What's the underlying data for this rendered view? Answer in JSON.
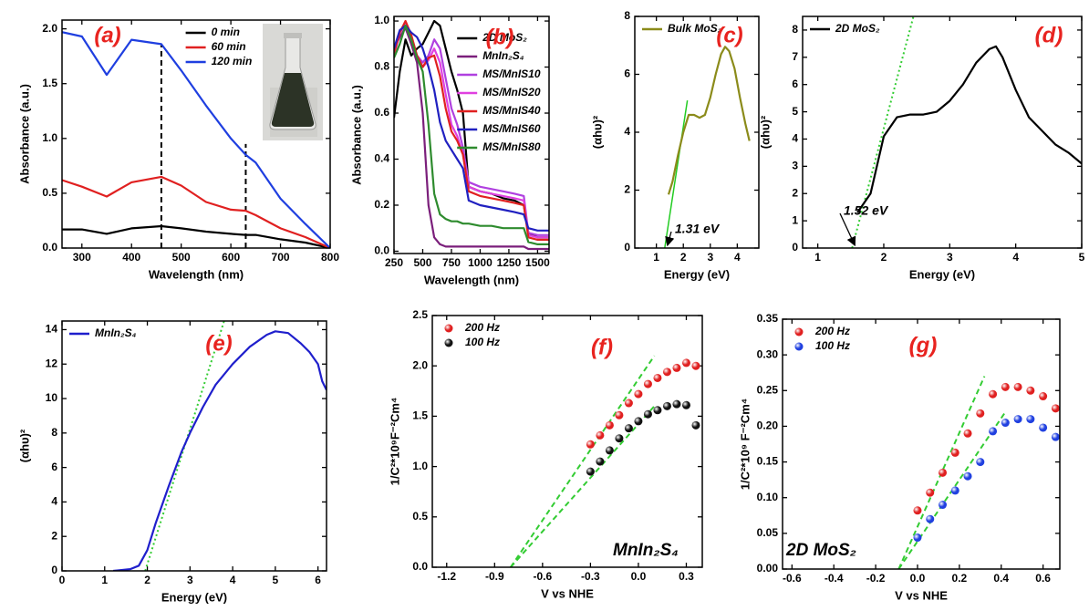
{
  "chart_data": [
    {
      "type": "line",
      "panel_label": "(a)",
      "x_label": "Wavelength (nm)",
      "y_label": "Absorbance (a.u.)",
      "legend": "upper right",
      "xlim": [
        260,
        800
      ],
      "xticks": [
        300,
        400,
        500,
        600,
        700,
        800
      ],
      "ylim": [
        0,
        2.08
      ],
      "yticks": [
        {
          "value": 0,
          "label": "0.0"
        },
        0.5,
        {
          "value": 1,
          "label": "1.0"
        },
        1.5,
        {
          "value": 2,
          "label": "2.0"
        }
      ],
      "x": [
        260,
        300,
        350,
        400,
        460,
        500,
        550,
        600,
        630,
        650,
        700,
        750,
        800
      ],
      "series": [
        {
          "name": "0 min",
          "color": "#000000",
          "values": [
            0.17,
            0.17,
            0.13,
            0.18,
            0.2,
            0.18,
            0.15,
            0.13,
            0.12,
            0.12,
            0.08,
            0.05,
            0.0
          ]
        },
        {
          "name": "60 min",
          "color": "#e02020",
          "values": [
            0.62,
            0.56,
            0.47,
            0.6,
            0.65,
            0.57,
            0.42,
            0.35,
            0.34,
            0.3,
            0.18,
            0.1,
            0.0
          ]
        },
        {
          "name": "120 min",
          "color": "#1f3fe0",
          "values": [
            1.97,
            1.93,
            1.58,
            1.9,
            1.86,
            1.62,
            1.3,
            1.0,
            0.85,
            0.78,
            0.45,
            0.22,
            0.0
          ]
        }
      ],
      "guide_lines": [
        {
          "x": [
            460,
            460
          ],
          "y": [
            0,
            1.85
          ],
          "color": "#000000",
          "style": "dashed"
        },
        {
          "x": [
            630,
            630
          ],
          "y": [
            0,
            0.95
          ],
          "color": "#000000",
          "style": "dashed"
        }
      ],
      "annotations": []
    },
    {
      "type": "line",
      "panel_label": "(b)",
      "x_label": "Wavelength (nm)",
      "y_label": "Absorbance (a.u.)",
      "legend": "upper right",
      "xlim": [
        250,
        1600
      ],
      "xticks": [
        250,
        500,
        750,
        1000,
        1250,
        1500
      ],
      "ylim": [
        -0.01,
        1.02
      ],
      "yticks": [
        {
          "value": 0,
          "label": "0.0"
        },
        0.2,
        0.4,
        0.6,
        0.8,
        {
          "value": 1,
          "label": "1.0"
        }
      ],
      "x": [
        250,
        300,
        350,
        400,
        450,
        500,
        550,
        600,
        650,
        700,
        750,
        800,
        850,
        900,
        1000,
        1100,
        1200,
        1300,
        1380,
        1420,
        1500,
        1600
      ],
      "series": [
        {
          "name": "2D MoS₂",
          "color": "#000000",
          "values": [
            0.58,
            0.78,
            0.92,
            0.85,
            0.88,
            0.9,
            0.95,
            1.0,
            0.98,
            0.88,
            0.78,
            0.7,
            0.6,
            0.28,
            0.26,
            0.25,
            0.23,
            0.22,
            0.2,
            0.08,
            0.06,
            0.06
          ]
        },
        {
          "name": "MnIn₂S₄",
          "color": "#7b1f7b",
          "values": [
            0.88,
            0.93,
            0.97,
            0.9,
            0.82,
            0.6,
            0.2,
            0.06,
            0.03,
            0.02,
            0.02,
            0.02,
            0.02,
            0.02,
            0.02,
            0.02,
            0.02,
            0.02,
            0.02,
            0.01,
            0.01,
            0.01
          ]
        },
        {
          "name": "MS/MnIS10",
          "color": "#b040e0",
          "values": [
            0.85,
            0.95,
            0.98,
            0.92,
            0.85,
            0.82,
            0.85,
            0.92,
            0.88,
            0.75,
            0.62,
            0.55,
            0.45,
            0.3,
            0.28,
            0.27,
            0.26,
            0.25,
            0.24,
            0.08,
            0.07,
            0.07
          ]
        },
        {
          "name": "MS/MnIS20",
          "color": "#e040e0",
          "values": [
            0.85,
            0.95,
            0.99,
            0.92,
            0.85,
            0.8,
            0.83,
            0.88,
            0.82,
            0.68,
            0.55,
            0.5,
            0.42,
            0.28,
            0.26,
            0.25,
            0.24,
            0.23,
            0.22,
            0.07,
            0.06,
            0.06
          ]
        },
        {
          "name": "MS/MnIS40",
          "color": "#e02020",
          "values": [
            0.86,
            0.95,
            1.0,
            0.94,
            0.85,
            0.8,
            0.84,
            0.85,
            0.76,
            0.62,
            0.52,
            0.48,
            0.42,
            0.26,
            0.24,
            0.23,
            0.22,
            0.21,
            0.2,
            0.06,
            0.05,
            0.05
          ]
        },
        {
          "name": "MS/MnIS60",
          "color": "#2020c0",
          "values": [
            0.88,
            0.96,
            0.98,
            0.95,
            0.93,
            0.88,
            0.8,
            0.7,
            0.56,
            0.48,
            0.44,
            0.4,
            0.36,
            0.22,
            0.2,
            0.19,
            0.18,
            0.17,
            0.16,
            0.1,
            0.09,
            0.09
          ]
        },
        {
          "name": "MS/MnIS80",
          "color": "#2e8b2e",
          "values": [
            0.84,
            0.9,
            0.98,
            0.92,
            0.84,
            0.78,
            0.55,
            0.25,
            0.16,
            0.14,
            0.13,
            0.13,
            0.12,
            0.12,
            0.11,
            0.11,
            0.1,
            0.1,
            0.1,
            0.04,
            0.03,
            0.03
          ]
        }
      ],
      "guide_lines": [],
      "annotations": []
    },
    {
      "type": "line",
      "panel_label": "(c)",
      "x_label": "Energy (eV)",
      "y_label": "(αhυ)²",
      "legend": "upper left",
      "xlim": [
        0.2,
        4.8
      ],
      "xticks": [
        1,
        2,
        3,
        4
      ],
      "ylim": [
        0,
        8
      ],
      "yticks": [
        0,
        2,
        4,
        6,
        8
      ],
      "series": [
        {
          "name": "Bulk MoS₂",
          "color": "#8b8b1a",
          "x": [
            1.45,
            1.6,
            1.8,
            2.0,
            2.2,
            2.4,
            2.6,
            2.8,
            3.0,
            3.2,
            3.4,
            3.55,
            3.7,
            3.9,
            4.1,
            4.3,
            4.45
          ],
          "values": [
            1.85,
            2.3,
            3.2,
            4.0,
            4.6,
            4.6,
            4.5,
            4.6,
            5.2,
            6.0,
            6.7,
            6.95,
            6.8,
            6.2,
            5.2,
            4.3,
            3.7
          ]
        }
      ],
      "guide_lines": [
        {
          "x": [
            1.31,
            2.15
          ],
          "y": [
            0,
            5.1
          ],
          "color": "#22cc22",
          "style": "solid"
        }
      ],
      "annotations": [
        {
          "text": "1.31 eV"
        }
      ]
    },
    {
      "type": "line",
      "panel_label": "(d)",
      "x_label": "Energy (eV)",
      "y_label": "(αhυ)²",
      "legend": "upper left",
      "xlim": [
        0.77,
        5
      ],
      "xticks": [
        1,
        2,
        3,
        4,
        5
      ],
      "ylim": [
        0,
        8.5
      ],
      "yticks": [
        0,
        1,
        2,
        3,
        4,
        5,
        6,
        7,
        8
      ],
      "series": [
        {
          "name": "2D MoS₂",
          "color": "#000000",
          "x": [
            1.6,
            1.8,
            2.0,
            2.2,
            2.4,
            2.6,
            2.8,
            3.0,
            3.2,
            3.4,
            3.6,
            3.7,
            3.8,
            4.0,
            4.2,
            4.4,
            4.6,
            4.8,
            5.0
          ],
          "values": [
            1.3,
            2.0,
            4.1,
            4.8,
            4.9,
            4.9,
            5.0,
            5.4,
            6.0,
            6.8,
            7.3,
            7.4,
            7.0,
            5.8,
            4.8,
            4.3,
            3.8,
            3.5,
            3.1
          ]
        }
      ],
      "guide_lines": [
        {
          "x": [
            1.52,
            2.45
          ],
          "y": [
            0,
            8.5
          ],
          "color": "#33cc33",
          "style": "dotted"
        }
      ],
      "annotations": [
        {
          "text": "1.52 eV"
        }
      ]
    },
    {
      "type": "line",
      "panel_label": "(e)",
      "x_label": "Energy (eV)",
      "y_label": "(αhυ)²",
      "legend": "upper left",
      "xlim": [
        0,
        6.2
      ],
      "xticks": [
        0,
        1,
        2,
        3,
        4,
        5,
        6
      ],
      "ylim": [
        0,
        14.5
      ],
      "yticks": [
        0,
        2,
        4,
        6,
        8,
        10,
        12,
        14
      ],
      "series": [
        {
          "name": "MnIn₂S₄",
          "color": "#1f1fcc",
          "x": [
            1.2,
            1.6,
            1.8,
            2.0,
            2.2,
            2.5,
            2.8,
            3.0,
            3.3,
            3.6,
            4.0,
            4.4,
            4.8,
            5.0,
            5.3,
            5.6,
            5.8,
            6.0,
            6.1,
            6.2
          ],
          "values": [
            0,
            0.1,
            0.3,
            1.2,
            2.8,
            4.9,
            6.9,
            8.0,
            9.5,
            10.8,
            12.0,
            13.0,
            13.7,
            13.9,
            13.8,
            13.2,
            12.7,
            12.0,
            11.0,
            10.5
          ]
        }
      ],
      "guide_lines": [
        {
          "x": [
            1.95,
            3.8
          ],
          "y": [
            0,
            14.5
          ],
          "color": "#33cc33",
          "style": "dotted"
        }
      ],
      "annotations": []
    },
    {
      "type": "scatter",
      "panel_label": "(f)",
      "x_label": "V vs NHE",
      "y_label": "1/C²*10⁹F⁻²Cm⁴",
      "legend": "upper left",
      "xlim": [
        -1.29,
        0.4
      ],
      "xticks": [
        -1.2,
        -0.9,
        -0.6,
        -0.3,
        {
          "value": 0,
          "label": "0.0"
        },
        0.3
      ],
      "ylim": [
        0,
        2.5
      ],
      "yticks": [
        {
          "value": 0,
          "label": "0.0"
        },
        0.5,
        {
          "value": 1,
          "label": "1.0"
        },
        1.5,
        {
          "value": 2,
          "label": "2.0"
        },
        2.5
      ],
      "x": [
        -0.3,
        -0.24,
        -0.18,
        -0.12,
        -0.06,
        0.0,
        0.06,
        0.12,
        0.18,
        0.24,
        0.3,
        0.36
      ],
      "series": [
        {
          "name": "200 Hz",
          "color": "#e02020",
          "values": [
            1.22,
            1.31,
            1.41,
            1.51,
            1.63,
            1.72,
            1.82,
            1.88,
            1.94,
            1.98,
            2.03,
            2.0
          ]
        },
        {
          "name": "100 Hz",
          "color": "#111111",
          "values": [
            0.95,
            1.05,
            1.16,
            1.28,
            1.38,
            1.45,
            1.52,
            1.56,
            1.6,
            1.62,
            1.61,
            1.41
          ]
        }
      ],
      "guide_lines": [
        {
          "x": [
            -0.8,
            0.1
          ],
          "y": [
            0,
            2.1
          ],
          "color": "#33cc33",
          "style": "dashed"
        },
        {
          "x": [
            -0.8,
            0.1
          ],
          "y": [
            0,
            1.6
          ],
          "color": "#33cc33",
          "style": "dashed"
        }
      ],
      "annotations": [
        {
          "text": "MnIn₂S₄"
        }
      ]
    },
    {
      "type": "scatter",
      "panel_label": "(g)",
      "x_label": "V vs NHE",
      "y_label": "1/C²*10⁹ F⁻²Cm⁴",
      "legend": "upper left",
      "xlim": [
        -0.645,
        0.68
      ],
      "xticks": [
        -0.6,
        -0.4,
        -0.2,
        {
          "value": 0,
          "label": "0.0"
        },
        0.2,
        0.4,
        0.6
      ],
      "ylim": [
        0,
        0.35
      ],
      "yticks": [
        {
          "value": 0,
          "label": "0.00"
        },
        0.05,
        {
          "value": 0.1,
          "label": "0.10"
        },
        0.15,
        {
          "value": 0.2,
          "label": "0.20"
        },
        0.25,
        {
          "value": 0.3,
          "label": "0.30"
        },
        0.35
      ],
      "x": [
        0.0,
        0.06,
        0.12,
        0.18,
        0.24,
        0.3,
        0.36,
        0.42,
        0.48,
        0.54,
        0.6,
        0.66
      ],
      "series": [
        {
          "name": "200 Hz",
          "color": "#e02020",
          "values": [
            0.082,
            0.107,
            0.135,
            0.163,
            0.19,
            0.218,
            0.245,
            0.255,
            0.255,
            0.25,
            0.242,
            0.225
          ]
        },
        {
          "name": "100 Hz",
          "color": "#2040e0",
          "values": [
            0.044,
            0.07,
            0.09,
            0.11,
            0.13,
            0.15,
            0.193,
            0.205,
            0.21,
            0.21,
            0.198,
            0.185
          ]
        }
      ],
      "guide_lines": [
        {
          "x": [
            -0.09,
            0.32
          ],
          "y": [
            0,
            0.27
          ],
          "color": "#33cc33",
          "style": "dashed"
        },
        {
          "x": [
            -0.09,
            0.42
          ],
          "y": [
            0,
            0.22
          ],
          "color": "#33cc33",
          "style": "dashed"
        }
      ],
      "annotations": [
        {
          "text": "2D MoS₂"
        }
      ]
    }
  ]
}
